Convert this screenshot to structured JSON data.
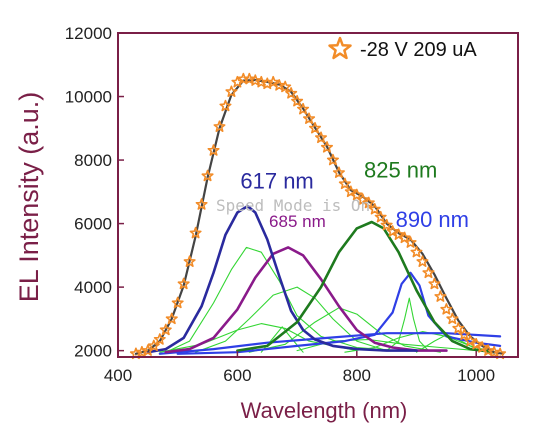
{
  "chart_data": {
    "type": "line",
    "title": "",
    "xlabel": "Wavelength (nm)",
    "ylabel": "EL Intensity (a.u.)",
    "xlim": [
      400,
      1070
    ],
    "ylim": [
      1800,
      12000
    ],
    "xticks": [
      400,
      600,
      800,
      1000
    ],
    "xtick_labels": [
      "400",
      "600",
      "800",
      "1000"
    ],
    "yticks": [
      2000,
      4000,
      6000,
      8000,
      10000,
      12000
    ],
    "ytick_labels": [
      "2000",
      "4000",
      "6000",
      "8000",
      "10000",
      "12000"
    ],
    "legend": {
      "position": "top-right",
      "label": "-28 V 209 uA",
      "marker": "star",
      "color": "#f28c28"
    },
    "grid": false,
    "colors": {
      "axis": "#7a1f47",
      "measured": "#f28c28",
      "fit_total": "#444444",
      "peak_617": "#2a2a9e",
      "peak_685": "#8a1a8a",
      "peak_825": "#1e7a1e",
      "peak_890": "#2f3fe6",
      "components": "#33d633"
    },
    "annotations": [
      {
        "text": "617 nm",
        "x": 605,
        "y": 7100,
        "color": "#2a2a9e",
        "size": 22
      },
      {
        "text": "685 nm",
        "x": 653,
        "y": 5900,
        "color": "#8a1a8a",
        "size": 17
      },
      {
        "text": "825 nm",
        "x": 812,
        "y": 7450,
        "color": "#1e7a1e",
        "size": 22
      },
      {
        "text": "890 nm",
        "x": 865,
        "y": 5900,
        "color": "#2f3fe6",
        "size": 22
      }
    ],
    "watermark": "Speed Mode is On",
    "series": [
      {
        "name": "-28 V 209 uA",
        "style": "markers",
        "x": [
          430,
          440,
          450,
          460,
          470,
          480,
          490,
          500,
          510,
          520,
          530,
          540,
          550,
          560,
          570,
          580,
          590,
          600,
          610,
          620,
          630,
          640,
          650,
          660,
          670,
          680,
          690,
          700,
          710,
          720,
          730,
          740,
          750,
          760,
          770,
          780,
          790,
          800,
          810,
          820,
          830,
          840,
          850,
          860,
          870,
          880,
          890,
          900,
          910,
          920,
          930,
          940,
          950,
          960,
          970,
          980,
          990,
          1000,
          1010,
          1020,
          1030,
          1040
        ],
        "values": [
          1900,
          1950,
          2000,
          2150,
          2350,
          2650,
          3000,
          3500,
          4100,
          4800,
          5700,
          6600,
          7500,
          8300,
          9050,
          9700,
          10150,
          10450,
          10550,
          10550,
          10500,
          10450,
          10400,
          10450,
          10350,
          10300,
          10100,
          9850,
          9600,
          9300,
          9000,
          8700,
          8400,
          8000,
          7600,
          7250,
          7000,
          6900,
          6750,
          6650,
          6450,
          6200,
          5950,
          5750,
          5650,
          5550,
          5400,
          5100,
          4800,
          4450,
          4100,
          3700,
          3300,
          3000,
          2700,
          2500,
          2300,
          2200,
          2100,
          2000,
          1950,
          1900
        ]
      },
      {
        "name": "",
        "style": "fit-total",
        "x": [
          430,
          450,
          470,
          490,
          510,
          530,
          550,
          570,
          590,
          610,
          630,
          650,
          670,
          690,
          710,
          730,
          750,
          770,
          790,
          810,
          830,
          850,
          870,
          890,
          910,
          930,
          950,
          970,
          990,
          1010,
          1030,
          1045
        ],
        "values": [
          1900,
          2000,
          2300,
          3000,
          4050,
          5600,
          7450,
          9000,
          10050,
          10500,
          10520,
          10460,
          10380,
          10150,
          9620,
          9020,
          8420,
          7620,
          7050,
          6850,
          6550,
          6000,
          5700,
          5500,
          5050,
          4400,
          3650,
          2950,
          2450,
          2150,
          1950,
          1900
        ]
      },
      {
        "name": "",
        "style": "peak-617",
        "x": [
          450,
          480,
          510,
          540,
          560,
          580,
          600,
          617,
          630,
          650,
          670,
          690,
          710,
          730,
          760,
          800,
          850,
          900
        ],
        "values": [
          1950,
          2050,
          2400,
          3400,
          4450,
          5650,
          6350,
          6550,
          6350,
          5500,
          4350,
          3250,
          2650,
          2350,
          2150,
          2050,
          2000,
          2000
        ]
      },
      {
        "name": "",
        "style": "peak-685",
        "x": [
          480,
          520,
          560,
          600,
          630,
          660,
          685,
          710,
          740,
          770,
          800,
          830,
          860,
          900,
          950
        ],
        "values": [
          1950,
          2050,
          2400,
          3300,
          4300,
          5050,
          5250,
          5000,
          4250,
          3400,
          2650,
          2250,
          2100,
          2000,
          2000
        ]
      },
      {
        "name": "",
        "style": "peak-825",
        "x": [
          600,
          650,
          700,
          740,
          770,
          800,
          825,
          845,
          870,
          900,
          930,
          960,
          990,
          1030
        ],
        "values": [
          2000,
          2150,
          2900,
          4000,
          5100,
          5850,
          6050,
          5850,
          5100,
          3900,
          2900,
          2300,
          2050,
          1950
        ]
      },
      {
        "name": "",
        "style": "peak-890",
        "x": [
          500,
          600,
          700,
          780,
          830,
          860,
          875,
          890,
          905,
          920,
          950,
          1000,
          1040
        ],
        "values": [
          1900,
          1950,
          2150,
          2300,
          2500,
          3200,
          4100,
          4450,
          4050,
          3100,
          2450,
          2250,
          2150
        ]
      },
      {
        "name": "",
        "style": "baseline",
        "x": [
          470,
          560,
          650,
          750,
          850,
          950,
          1040
        ],
        "values": [
          1900,
          2050,
          2250,
          2400,
          2550,
          2550,
          2450
        ]
      },
      {
        "name": "",
        "style": "component",
        "x": [
          480,
          520,
          560,
          590,
          615,
          640,
          670,
          700,
          740,
          800,
          870
        ],
        "values": [
          1950,
          2300,
          3500,
          4550,
          5250,
          5100,
          4200,
          3100,
          2450,
          2100,
          2000
        ]
      },
      {
        "name": "",
        "style": "component",
        "x": [
          530,
          580,
          620,
          660,
          700,
          730,
          760,
          800,
          850
        ],
        "values": [
          1950,
          2300,
          3000,
          3750,
          4000,
          3650,
          3000,
          2300,
          2000
        ]
      },
      {
        "name": "",
        "style": "component",
        "x": [
          470,
          540,
          600,
          640,
          680,
          720,
          800
        ],
        "values": [
          1950,
          2200,
          2650,
          2850,
          2700,
          2300,
          2000
        ]
      },
      {
        "name": "",
        "style": "component",
        "x": [
          620,
          680,
          730,
          770,
          800,
          840,
          880,
          940
        ],
        "values": [
          1950,
          2200,
          2900,
          3350,
          3150,
          2550,
          2150,
          1950
        ]
      },
      {
        "name": "",
        "style": "component",
        "x": [
          640,
          660,
          675,
          690,
          710
        ],
        "values": [
          1950,
          2400,
          2750,
          2400,
          1950
        ]
      },
      {
        "name": "",
        "style": "component",
        "x": [
          850,
          870,
          880,
          888,
          895,
          905,
          920
        ],
        "values": [
          2000,
          2300,
          3000,
          3650,
          3000,
          2300,
          2000
        ]
      },
      {
        "name": "",
        "style": "component",
        "x": [
          780,
          830,
          870,
          910,
          950,
          990,
          1030
        ],
        "values": [
          1950,
          2100,
          2400,
          2600,
          2450,
          2150,
          1950
        ]
      },
      {
        "name": "",
        "style": "component",
        "x": [
          900,
          930,
          950,
          970,
          1000,
          1030
        ],
        "values": [
          1950,
          2300,
          2500,
          2350,
          2050,
          1950
        ]
      },
      {
        "name": "",
        "style": "component",
        "x": [
          700,
          760,
          820,
          880,
          940,
          1000
        ],
        "values": [
          2000,
          2300,
          2350,
          2200,
          2100,
          2000
        ]
      }
    ]
  }
}
